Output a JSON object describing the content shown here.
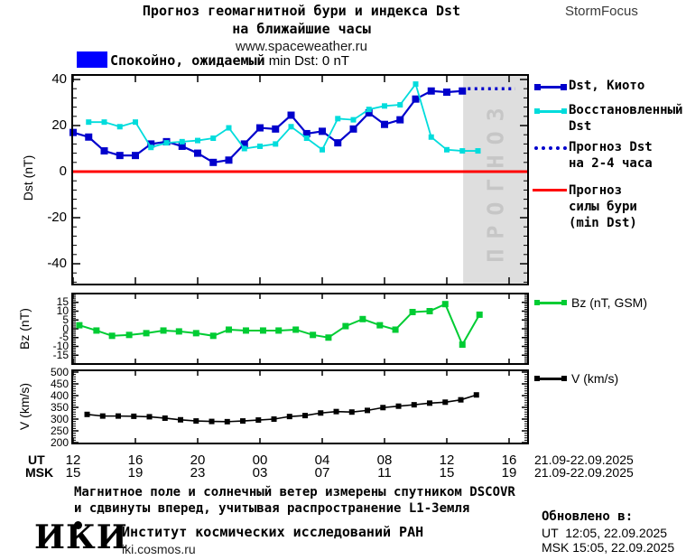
{
  "header": {
    "title_line1": "Прогноз геомагнитной бури и индекса Dst",
    "title_line2": "на ближайшие часы",
    "website": "www.spaceweather.ru",
    "brand": "StormFocus"
  },
  "status": {
    "text_ru": "Спокойно, ожидаемый",
    "text_latin": " min Dst: 0 nT"
  },
  "colors": {
    "dst_kyoto": "#0000cc",
    "restored_dst": "#00dcdc",
    "forecast_dst": "#0000cc",
    "storm_level": "#ff0000",
    "bz": "#00cc33",
    "v": "#000000",
    "quiet_box": "#0000ff",
    "forecast_band": "#dedede",
    "forecast_band_label": "#c6c6c6"
  },
  "forecast_region_label": "ПРОГНОЗ",
  "legend": {
    "dst_kyoto": "Dst, Киото",
    "restored_line1": "Восстановленный",
    "restored_line2": "Dst",
    "forecast_line1": "Прогноз Dst",
    "forecast_line2": "на 2-4 часа",
    "storm_line1": "Прогноз",
    "storm_line2": "силы бури",
    "storm_line3": "(min Dst)",
    "bz": "Bz (nT, GSM)",
    "v": "V (km/s)"
  },
  "axes": {
    "dst_ylabel": "Dst (nT)",
    "bz_ylabel": "Bz (nT)",
    "v_ylabel": "V (km/s)",
    "ut_row_label": "UT",
    "msk_row_label": "MSK",
    "ut_ticks": [
      "12",
      "16",
      "20",
      "00",
      "04",
      "08",
      "12",
      "16"
    ],
    "msk_ticks": [
      "15",
      "19",
      "23",
      "03",
      "07",
      "11",
      "15",
      "19"
    ],
    "xticks_hours": [
      0,
      4,
      8,
      12,
      16,
      20,
      24,
      28
    ],
    "date_range_ut": "21.09-22.09.2025",
    "date_range_msk": "21.09-22.09.2025"
  },
  "chart_data": [
    {
      "type": "line",
      "name": "dst-forecast-chart",
      "ylabel": "Dst (nT)",
      "yticks": [
        40,
        20,
        0,
        -20,
        -40
      ],
      "ylim": [
        -49,
        42
      ],
      "x_unit": "hours since 21.09.2025 12:00 UT",
      "xlim": [
        -0.1,
        29.2
      ],
      "grid": false,
      "legend_position": "right",
      "forecast_band": {
        "x0": 25.05,
        "x1": 29.2
      },
      "series": [
        {
          "name": "Dst, Киото",
          "color": "#0000cc",
          "marker": "square",
          "x": [
            0,
            1,
            2,
            3,
            4,
            5,
            6,
            7,
            8,
            9,
            10,
            11,
            12,
            13,
            14,
            15,
            16,
            17,
            18,
            19,
            20,
            21,
            22,
            23,
            24,
            25
          ],
          "values": [
            17,
            15,
            9,
            7,
            7,
            12,
            13,
            11,
            8,
            4,
            5,
            12,
            19,
            18.5,
            24.5,
            16.5,
            17.5,
            12.5,
            18.5,
            25.5,
            20.5,
            22.5,
            31.5,
            35,
            34.5,
            35
          ]
        },
        {
          "name": "Восстановленный Dst",
          "color": "#00dcdc",
          "marker": "square",
          "x": [
            1,
            2,
            3,
            4,
            5,
            6,
            7,
            8,
            9,
            10,
            11,
            12,
            13,
            14,
            15,
            16,
            17,
            18,
            19,
            20,
            21,
            22,
            23,
            24,
            25,
            26
          ],
          "values": [
            21.5,
            21.5,
            19.5,
            21.5,
            10.5,
            12.5,
            13,
            13.5,
            14.5,
            19,
            10,
            11,
            12,
            19.5,
            14.5,
            9.5,
            23,
            22.5,
            27,
            28.5,
            29,
            38,
            15,
            9.5,
            9,
            9
          ]
        },
        {
          "name": "Прогноз Dst на 2-4 часа",
          "color": "#0000cc",
          "style": "dotted",
          "x": [
            25.35,
            28.4
          ],
          "values": [
            36,
            36
          ]
        },
        {
          "name": "Прогноз силы бури (min Dst)",
          "color": "#ff0000",
          "style": "solid",
          "x": [
            -0.1,
            29.2
          ],
          "values": [
            0,
            0
          ]
        }
      ]
    },
    {
      "type": "line",
      "name": "bz-chart",
      "ylabel": "Bz (nT)",
      "yticks": [
        15,
        10,
        5,
        0,
        -5,
        -10,
        -15
      ],
      "ylim": [
        -20,
        20
      ],
      "xlim": [
        -0.1,
        29.2
      ],
      "series": [
        {
          "name": "Bz (nT, GSM)",
          "color": "#00cc33",
          "marker": "square",
          "x": [
            0.4,
            1.5,
            2.5,
            3.6,
            4.7,
            5.8,
            6.8,
            7.9,
            9,
            10,
            11.1,
            12.2,
            13.2,
            14.3,
            15.4,
            16.4,
            17.5,
            18.6,
            19.7,
            20.7,
            21.8,
            22.9,
            23.9,
            25,
            26.1
          ],
          "values": [
            2,
            -1,
            -4,
            -3.5,
            -2.5,
            -1,
            -1.5,
            -2.5,
            -4,
            -0.5,
            -1,
            -1,
            -1,
            -0.5,
            -3.5,
            -5,
            1.5,
            5.5,
            2,
            -0.5,
            9.5,
            10,
            14,
            -9,
            8
          ]
        }
      ]
    },
    {
      "type": "line",
      "name": "solar-wind-speed-chart",
      "ylabel": "V (km/s)",
      "yticks": [
        500,
        450,
        400,
        350,
        300,
        250,
        200
      ],
      "ylim": [
        196,
        507
      ],
      "xlim": [
        -0.1,
        29.2
      ],
      "series": [
        {
          "name": "V (km/s)",
          "color": "#000000",
          "marker": "square",
          "x": [
            0.9,
            1.9,
            2.9,
            3.9,
            4.9,
            5.9,
            6.9,
            7.9,
            8.9,
            9.9,
            10.9,
            11.9,
            12.9,
            13.9,
            14.9,
            15.9,
            16.9,
            17.9,
            18.9,
            19.9,
            20.9,
            21.9,
            22.9,
            23.9,
            24.9,
            25.9
          ],
          "values": [
            320,
            313,
            313,
            312,
            310,
            304,
            297,
            292,
            290,
            289,
            292,
            296,
            300,
            311,
            315,
            326,
            332,
            330,
            337,
            349,
            355,
            361,
            368,
            372,
            382,
            403
          ]
        }
      ]
    }
  ],
  "footnote": {
    "line1": "Магнитное поле и солнечный ветер измерены спутником DSCOVR",
    "line2": "и сдвинуты вперед, учитывая распространение L1-Земля"
  },
  "footer": {
    "logo": "ИКИ",
    "institute": "Институт космических исследований РАН",
    "site": "iki.cosmos.ru",
    "updated_label": "Обновлено в:",
    "updated_ut": "UT  12:05, 22.09.2025",
    "updated_msk": "MSK 15:05, 22.09.2025"
  }
}
